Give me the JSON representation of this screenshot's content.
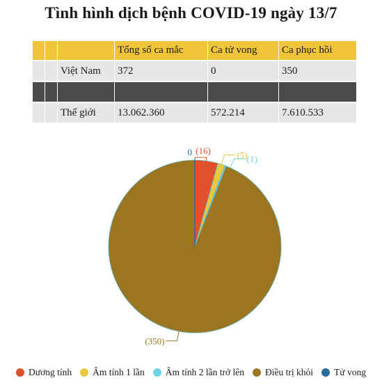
{
  "title": "Tình hình dịch bệnh COVID-19 ngày 13/7",
  "table": {
    "headers": [
      "",
      "",
      "",
      "Tổng số ca mắc",
      "Ca tử vong",
      "Ca phục hồi"
    ],
    "rows": [
      {
        "name": "Việt Nam",
        "total": "372",
        "deaths": "0",
        "recovered": "350"
      },
      {
        "name": "",
        "total": "",
        "deaths": "",
        "recovered": ""
      },
      {
        "name": "Thế giới",
        "total": "13.062.360",
        "deaths": "572.214",
        "recovered": "7.610.533"
      }
    ]
  },
  "chart_data": {
    "type": "pie",
    "categories": [
      "Dương tính",
      "Âm tính 1 lần",
      "Âm tính 2 lần trở lên",
      "Điều trị khỏi",
      "Tử vong"
    ],
    "values": [
      16,
      5,
      1,
      350,
      0
    ],
    "labels": [
      "(16)",
      "(5)",
      "(1)",
      "(350)",
      "0"
    ],
    "colors": [
      "#e0512b",
      "#e9c83e",
      "#6fd3e8",
      "#9c7520",
      "#2a6c9c"
    ],
    "legend_position": "bottom"
  }
}
